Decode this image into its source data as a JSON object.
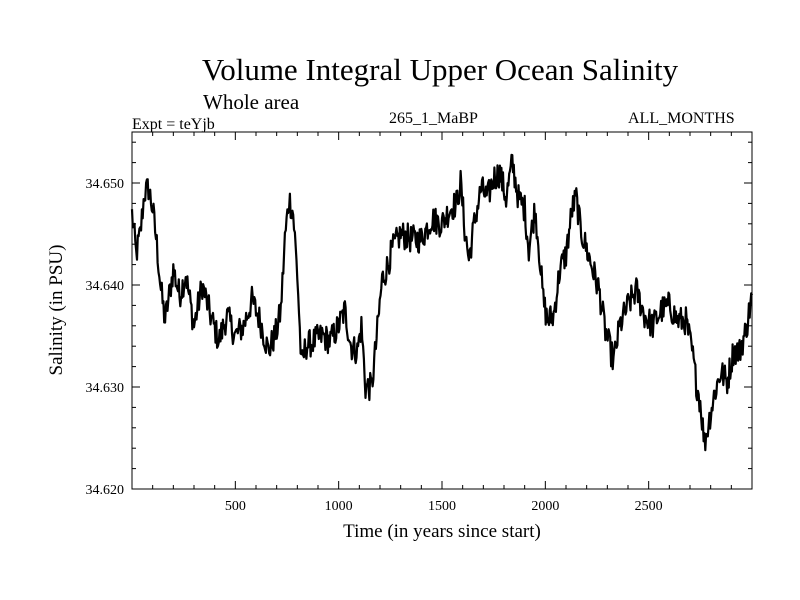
{
  "chart_data": {
    "type": "line",
    "title": "Volume Integral Upper Ocean Salinity",
    "subtitle": "Whole area",
    "left_label": "Expt = teYjb",
    "center_label": "265_1_MaBP",
    "right_label": "ALL_MONTHS",
    "xlabel": "Time (in years since start)",
    "ylabel": "Salinity (in PSU)",
    "xlim": [
      0,
      3000
    ],
    "ylim": [
      34.62,
      34.655
    ],
    "x_ticks": [
      500,
      1000,
      1500,
      2000,
      2500
    ],
    "x_tick_labels": [
      "500",
      "1000",
      "1500",
      "2000",
      "2500"
    ],
    "y_ticks": [
      34.62,
      34.63,
      34.64,
      34.65
    ],
    "y_tick_labels": [
      "34.620",
      "34.630",
      "34.640",
      "34.650"
    ],
    "series": [
      {
        "name": "salinity",
        "color": "#000000",
        "x": [
          0,
          20,
          40,
          60,
          80,
          100,
          120,
          140,
          160,
          180,
          200,
          230,
          260,
          300,
          340,
          380,
          420,
          460,
          500,
          540,
          580,
          620,
          660,
          700,
          720,
          740,
          760,
          780,
          800,
          820,
          840,
          880,
          920,
          960,
          1000,
          1030,
          1060,
          1090,
          1110,
          1130,
          1160,
          1180,
          1210,
          1230,
          1260,
          1300,
          1350,
          1400,
          1450,
          1500,
          1540,
          1570,
          1590,
          1610,
          1630,
          1660,
          1690,
          1720,
          1750,
          1780,
          1810,
          1840,
          1870,
          1900,
          1920,
          1950,
          1970,
          1990,
          2010,
          2040,
          2070,
          2100,
          2130,
          2150,
          2170,
          2200,
          2230,
          2260,
          2290,
          2310,
          2330,
          2360,
          2400,
          2440,
          2480,
          2520,
          2560,
          2600,
          2640,
          2680,
          2710,
          2730,
          2750,
          2770,
          2790,
          2820,
          2850,
          2880,
          2910,
          2940,
          2970,
          3000
        ],
        "values": [
          34.647,
          34.643,
          34.645,
          34.649,
          34.6495,
          34.6475,
          34.644,
          34.6395,
          34.6365,
          34.639,
          34.6415,
          34.639,
          34.641,
          34.636,
          34.64,
          34.637,
          34.6345,
          34.637,
          34.635,
          34.636,
          34.6385,
          34.6365,
          34.6335,
          34.6355,
          34.6375,
          34.6445,
          34.6485,
          34.647,
          34.641,
          34.632,
          34.634,
          34.6345,
          34.635,
          34.6345,
          34.636,
          34.6375,
          34.634,
          34.6335,
          34.636,
          34.63,
          34.63,
          34.634,
          34.6405,
          34.6415,
          34.6435,
          34.645,
          34.6445,
          34.6445,
          34.6465,
          34.646,
          34.6475,
          34.648,
          34.65,
          34.6455,
          34.6425,
          34.6465,
          34.6495,
          34.6485,
          34.6505,
          34.651,
          34.6485,
          34.652,
          34.6485,
          34.6475,
          34.6435,
          34.6475,
          34.6435,
          34.6385,
          34.6365,
          34.637,
          34.6415,
          34.643,
          34.6475,
          34.6485,
          34.6455,
          34.6435,
          34.6415,
          34.6395,
          34.6355,
          34.634,
          34.6325,
          34.636,
          34.638,
          34.6395,
          34.637,
          34.636,
          34.6375,
          34.638,
          34.6365,
          34.6365,
          34.6335,
          34.6305,
          34.6285,
          34.6245,
          34.6265,
          34.6295,
          34.6315,
          34.6305,
          34.6335,
          34.6335,
          34.6355,
          34.639
        ]
      }
    ]
  }
}
